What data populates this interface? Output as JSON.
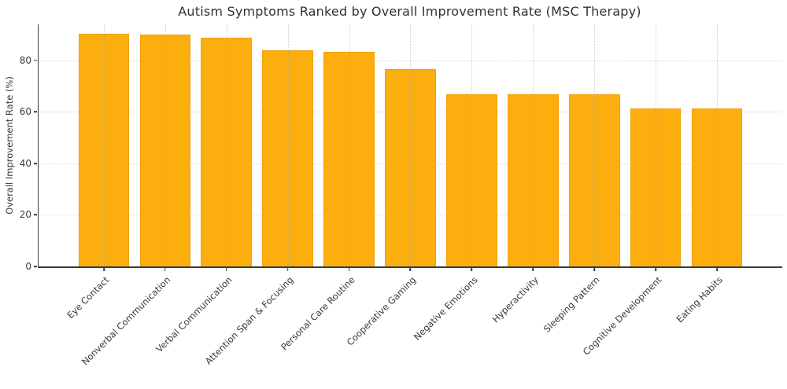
{
  "chart_data": {
    "type": "bar",
    "title": "Autism Symptoms Ranked by Overall Improvement Rate (MSC Therapy)",
    "xlabel": "",
    "ylabel": "Overall Improvement Rate (%)",
    "categories": [
      "Eye Contact",
      "Nonverbal Communication",
      "Verbal Communication",
      "Attention Span & Focusing",
      "Personal Care Routine",
      "Cooperative Gaming",
      "Negative Emotions",
      "Hyperactivity",
      "Sleeping Pattern",
      "Cognitive Development",
      "Eating Habits"
    ],
    "values": [
      90.3,
      90.0,
      88.9,
      84.0,
      83.3,
      76.5,
      66.7,
      66.7,
      66.7,
      61.5,
      61.5
    ],
    "yticks": [
      0,
      20,
      40,
      60,
      80
    ],
    "ylim": [
      0,
      94
    ],
    "grid": true,
    "legend_position": "none",
    "colors": {
      "bar": "#fdae0f",
      "bar_edge": "#e69600",
      "axis": "#3b3b3b",
      "grid": "#d6d6d6",
      "text": "#3a3a3a",
      "background": "#ffffff"
    }
  }
}
